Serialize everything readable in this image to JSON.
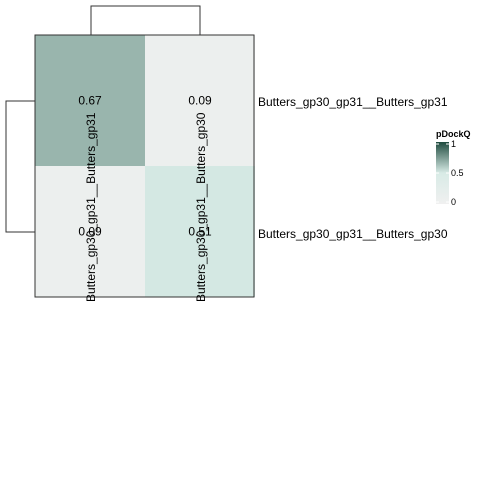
{
  "chart_data": {
    "type": "heatmap",
    "title": "",
    "rows": [
      "Butters_gp30_gp31__Butters_gp31",
      "Butters_gp30_gp31__Butters_gp30"
    ],
    "columns": [
      "Butters_gp30_gp31__Butters_gp31",
      "Butters_gp30_gp31__Butters_gp30"
    ],
    "values": [
      [
        0.67,
        0.09
      ],
      [
        0.09,
        0.51
      ]
    ],
    "cell_labels": [
      [
        "0.67",
        "0.09"
      ],
      [
        "0.09",
        "0.51"
      ]
    ],
    "row_dendrogram": true,
    "column_dendrogram": true,
    "legend": {
      "title": "pDockQ",
      "ticks": [
        {
          "value": 1,
          "label": "1"
        },
        {
          "value": 0.5,
          "label": "0.5"
        },
        {
          "value": 0,
          "label": "0"
        }
      ],
      "range": [
        0,
        1
      ],
      "placement": "right"
    },
    "colors": {
      "low": "#f0f0f0",
      "mid": "#d8ebe6",
      "high": "#1f4b3f"
    }
  }
}
